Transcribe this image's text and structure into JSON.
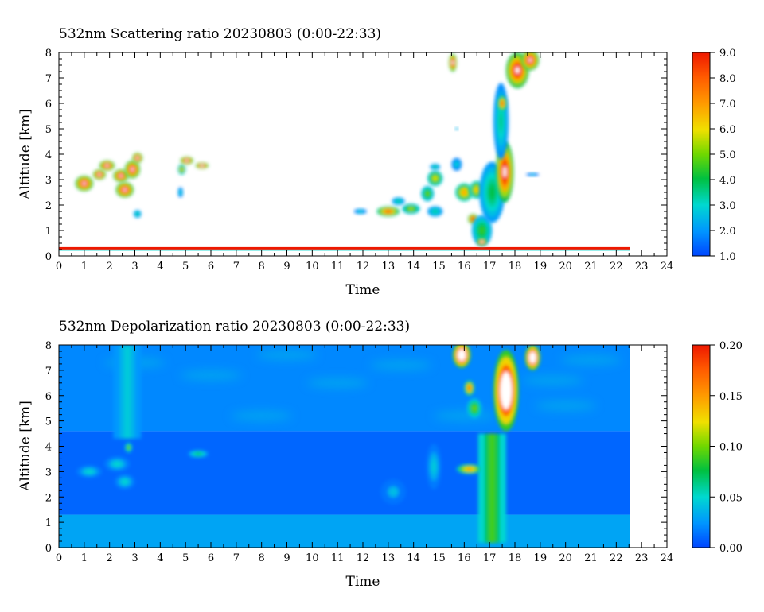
{
  "chart_data": [
    {
      "type": "heatmap",
      "title": "532nm Scattering ratio  20230803 (0:00-22:33)",
      "xlabel": "Time",
      "ylabel": "Altitude [km]",
      "xlim": [
        0,
        24
      ],
      "ylim": [
        0,
        8
      ],
      "x_ticks": [
        "0",
        "1",
        "2",
        "3",
        "4",
        "5",
        "6",
        "7",
        "8",
        "9",
        "10",
        "11",
        "12",
        "13",
        "14",
        "15",
        "16",
        "17",
        "18",
        "19",
        "20",
        "21",
        "22",
        "23",
        "24"
      ],
      "y_ticks": [
        "0",
        "1",
        "2",
        "3",
        "4",
        "5",
        "6",
        "7",
        "8"
      ],
      "colorbar": {
        "range": [
          1.0,
          9.0
        ],
        "ticks": [
          "1.0",
          "2.0",
          "3.0",
          "4.0",
          "5.0",
          "6.0",
          "7.0",
          "8.0",
          "9.0"
        ]
      },
      "data_end_time": 22.55,
      "features": [
        {
          "kind": "surface_layer",
          "t0": 0.0,
          "t1": 22.55,
          "alt": 0.3,
          "value": 9.0
        },
        {
          "kind": "cloud",
          "t": 1.0,
          "alt": 2.85,
          "w": 0.35,
          "h": 0.3,
          "value": 9.5
        },
        {
          "kind": "cloud",
          "t": 1.6,
          "alt": 3.2,
          "w": 0.25,
          "h": 0.2,
          "value": 9.5
        },
        {
          "kind": "cloud",
          "t": 1.9,
          "alt": 3.55,
          "w": 0.3,
          "h": 0.2,
          "value": 9.5
        },
        {
          "kind": "cloud",
          "t": 2.45,
          "alt": 3.15,
          "w": 0.3,
          "h": 0.25,
          "value": 9.5
        },
        {
          "kind": "cloud",
          "t": 2.6,
          "alt": 2.6,
          "w": 0.35,
          "h": 0.3,
          "value": 9.5
        },
        {
          "kind": "cloud",
          "t": 2.9,
          "alt": 3.4,
          "w": 0.3,
          "h": 0.35,
          "value": 9.5
        },
        {
          "kind": "cloud",
          "t": 3.1,
          "alt": 3.85,
          "w": 0.2,
          "h": 0.2,
          "value": 9.5
        },
        {
          "kind": "cloud",
          "t": 3.1,
          "alt": 1.65,
          "w": 0.15,
          "h": 0.15,
          "value": 3.5
        },
        {
          "kind": "cloud",
          "t": 4.85,
          "alt": 3.4,
          "w": 0.15,
          "h": 0.2,
          "value": 6.0
        },
        {
          "kind": "cloud",
          "t": 5.05,
          "alt": 3.75,
          "w": 0.25,
          "h": 0.15,
          "value": 9.5
        },
        {
          "kind": "cloud",
          "t": 5.65,
          "alt": 3.55,
          "w": 0.25,
          "h": 0.12,
          "value": 9.5
        },
        {
          "kind": "cloud",
          "t": 4.8,
          "alt": 2.5,
          "w": 0.1,
          "h": 0.2,
          "value": 3.0
        },
        {
          "kind": "cloud",
          "t": 11.9,
          "alt": 1.75,
          "w": 0.25,
          "h": 0.1,
          "value": 3.0
        },
        {
          "kind": "cloud",
          "t": 13.0,
          "alt": 1.75,
          "w": 0.45,
          "h": 0.2,
          "value": 8.0
        },
        {
          "kind": "cloud",
          "t": 13.9,
          "alt": 1.85,
          "w": 0.35,
          "h": 0.2,
          "value": 5.5
        },
        {
          "kind": "cloud",
          "t": 13.4,
          "alt": 2.15,
          "w": 0.25,
          "h": 0.15,
          "value": 3.5
        },
        {
          "kind": "cloud",
          "t": 14.55,
          "alt": 2.45,
          "w": 0.25,
          "h": 0.3,
          "value": 5.0
        },
        {
          "kind": "cloud",
          "t": 14.85,
          "alt": 3.05,
          "w": 0.3,
          "h": 0.3,
          "value": 6.0
        },
        {
          "kind": "cloud",
          "t": 14.85,
          "alt": 1.75,
          "w": 0.3,
          "h": 0.2,
          "value": 3.5
        },
        {
          "kind": "cloud",
          "t": 14.85,
          "alt": 3.5,
          "w": 0.2,
          "h": 0.12,
          "value": 3.5
        },
        {
          "kind": "cloud",
          "t": 15.55,
          "alt": 7.6,
          "w": 0.15,
          "h": 0.35,
          "value": 9.5
        },
        {
          "kind": "cloud",
          "t": 15.7,
          "alt": 5.0,
          "w": 0.05,
          "h": 0.05,
          "value": 2.5
        },
        {
          "kind": "cloud",
          "t": 15.7,
          "alt": 3.6,
          "w": 0.2,
          "h": 0.25,
          "value": 3.0
        },
        {
          "kind": "cloud",
          "t": 16.0,
          "alt": 2.5,
          "w": 0.35,
          "h": 0.35,
          "value": 7.0
        },
        {
          "kind": "cloud",
          "t": 16.5,
          "alt": 2.6,
          "w": 0.3,
          "h": 0.35,
          "value": 6.5
        },
        {
          "kind": "cloud",
          "t": 16.35,
          "alt": 1.45,
          "w": 0.2,
          "h": 0.2,
          "value": 9.0
        },
        {
          "kind": "cloud",
          "t": 16.7,
          "alt": 1.0,
          "w": 0.4,
          "h": 0.6,
          "value": 4.5
        },
        {
          "kind": "cloud",
          "t": 16.7,
          "alt": 0.55,
          "w": 0.2,
          "h": 0.15,
          "value": 9.5
        },
        {
          "kind": "cloud",
          "t": 17.1,
          "alt": 2.5,
          "w": 0.5,
          "h": 1.2,
          "value": 4.0
        },
        {
          "kind": "cloud",
          "t": 17.6,
          "alt": 3.3,
          "w": 0.35,
          "h": 1.2,
          "value": 9.5
        },
        {
          "kind": "cloud",
          "t": 17.45,
          "alt": 5.3,
          "w": 0.3,
          "h": 1.5,
          "value": 3.5
        },
        {
          "kind": "cloud",
          "t": 17.5,
          "alt": 6.0,
          "w": 0.18,
          "h": 0.3,
          "value": 8.0
        },
        {
          "kind": "cloud",
          "t": 18.1,
          "alt": 7.3,
          "w": 0.45,
          "h": 0.7,
          "value": 9.5
        },
        {
          "kind": "cloud",
          "t": 18.6,
          "alt": 7.7,
          "w": 0.35,
          "h": 0.4,
          "value": 9.5
        },
        {
          "kind": "cloud",
          "t": 18.7,
          "alt": 3.2,
          "w": 0.25,
          "h": 0.06,
          "value": 2.5
        }
      ]
    },
    {
      "type": "heatmap",
      "title": "532nm Depolarization ratio  20230803 (0:00-22:33)",
      "xlabel": "Time",
      "ylabel": "Altitude [km]",
      "xlim": [
        0,
        24
      ],
      "ylim": [
        0,
        8
      ],
      "x_ticks": [
        "0",
        "1",
        "2",
        "3",
        "4",
        "5",
        "6",
        "7",
        "8",
        "9",
        "10",
        "11",
        "12",
        "13",
        "14",
        "15",
        "16",
        "17",
        "18",
        "19",
        "20",
        "21",
        "22",
        "23",
        "24"
      ],
      "y_ticks": [
        "0",
        "1",
        "2",
        "3",
        "4",
        "5",
        "6",
        "7",
        "8"
      ],
      "colorbar": {
        "range": [
          0.0,
          0.2
        ],
        "ticks": [
          "0.00",
          "0.05",
          "0.10",
          "0.15",
          "0.20"
        ]
      },
      "data_end_time": 22.55,
      "features": [
        {
          "kind": "background_lower",
          "alt_max": 1.3,
          "value": 0.03
        },
        {
          "kind": "background_mid",
          "alt_min": 1.3,
          "alt_max": 4.6,
          "value": 0.01
        },
        {
          "kind": "background_upper",
          "alt_min": 4.6,
          "alt_max": 8.0,
          "value": 0.02
        },
        {
          "kind": "column",
          "t": 2.7,
          "alt0": 4.3,
          "alt1": 8.0,
          "value": 0.045
        },
        {
          "kind": "cloud",
          "t": 2.75,
          "alt": 3.95,
          "w": 0.15,
          "h": 0.2,
          "value": 0.1
        },
        {
          "kind": "cloud",
          "t": 1.2,
          "alt": 3.0,
          "w": 0.5,
          "h": 0.25,
          "value": 0.05
        },
        {
          "kind": "cloud",
          "t": 2.3,
          "alt": 3.3,
          "w": 0.5,
          "h": 0.3,
          "value": 0.05
        },
        {
          "kind": "cloud",
          "t": 2.6,
          "alt": 2.6,
          "w": 0.4,
          "h": 0.3,
          "value": 0.05
        },
        {
          "kind": "cloud",
          "t": 5.5,
          "alt": 3.7,
          "w": 0.4,
          "h": 0.15,
          "value": 0.07
        },
        {
          "kind": "cloud",
          "t": 14.8,
          "alt": 3.2,
          "w": 0.3,
          "h": 0.9,
          "value": 0.045
        },
        {
          "kind": "cloud",
          "t": 13.2,
          "alt": 2.2,
          "w": 0.5,
          "h": 0.5,
          "value": 0.04
        },
        {
          "kind": "column",
          "t": 17.1,
          "alt0": 0.2,
          "alt1": 4.5,
          "value": 0.09
        },
        {
          "kind": "cloud",
          "t": 16.2,
          "alt": 3.1,
          "w": 0.5,
          "h": 0.2,
          "value": 0.15
        },
        {
          "kind": "cloud",
          "t": 16.2,
          "alt": 6.3,
          "w": 0.2,
          "h": 0.3,
          "value": 0.17
        },
        {
          "kind": "cloud",
          "t": 16.4,
          "alt": 5.5,
          "w": 0.3,
          "h": 0.4,
          "value": 0.1
        },
        {
          "kind": "cloud",
          "t": 17.65,
          "alt": 6.2,
          "w": 0.5,
          "h": 1.6,
          "value": 0.25
        },
        {
          "kind": "cloud",
          "t": 15.9,
          "alt": 7.6,
          "w": 0.35,
          "h": 0.5,
          "value": 0.25
        },
        {
          "kind": "cloud",
          "t": 18.7,
          "alt": 7.5,
          "w": 0.3,
          "h": 0.5,
          "value": 0.25
        }
      ]
    }
  ]
}
